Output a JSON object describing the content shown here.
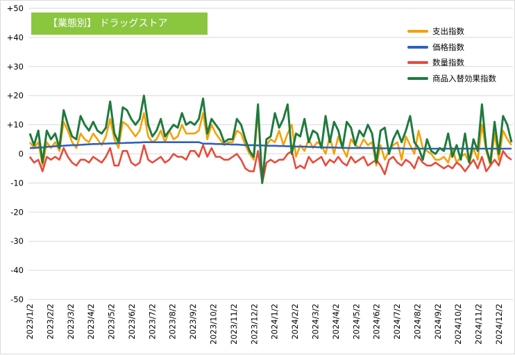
{
  "chart_data": {
    "type": "line",
    "title": "【業態別】 ドラッグストア",
    "ylim": [
      -50,
      50
    ],
    "ytick_labels": [
      "+50",
      "+40",
      "+30",
      "+20",
      "+10",
      "0",
      "-10",
      "-20",
      "-30",
      "-40",
      "-50"
    ],
    "ytick_values": [
      50,
      40,
      30,
      20,
      10,
      0,
      -10,
      -20,
      -30,
      -40,
      -50
    ],
    "xtick_labels": [
      "2023/1/2",
      "2023/2/2",
      "2023/3/2",
      "2023/4/2",
      "2023/5/2",
      "2023/6/2",
      "2023/7/2",
      "2023/8/2",
      "2023/9/2",
      "2023/10/2",
      "2023/11/2",
      "2023/12/2",
      "2024/1/2",
      "2024/2/2",
      "2024/3/2",
      "2024/4/2",
      "2024/5/2",
      "2024/6/2",
      "2024/7/2",
      "2024/8/2",
      "2024/9/2",
      "2024/10/2",
      "2024/11/2",
      "2024/12/2"
    ],
    "grid": true,
    "legend_position": "top-right",
    "series": [
      {
        "name": "支出指数",
        "color": "#f5a100",
        "values": [
          4,
          2,
          4,
          -4,
          4,
          2,
          4,
          1,
          11,
          8,
          4,
          2,
          7,
          5,
          4,
          7,
          5,
          3,
          6,
          12,
          5,
          2,
          11,
          10,
          8,
          6,
          8,
          14,
          6,
          4,
          5,
          8,
          4,
          8,
          5,
          6,
          10,
          7,
          7,
          7,
          8,
          14,
          5,
          10,
          7,
          5,
          3,
          4,
          4,
          8,
          7,
          3,
          0,
          -2,
          14,
          -8,
          3,
          5,
          4,
          8,
          3,
          7,
          10,
          -1,
          3,
          1,
          5,
          2,
          4,
          3,
          0,
          6,
          0,
          6,
          2,
          -1,
          5,
          3,
          2,
          5,
          3,
          4,
          -4,
          3,
          -2,
          1,
          3,
          4,
          -2,
          6,
          3,
          0,
          8,
          2,
          1,
          0,
          -2,
          -2,
          -1,
          -3,
          2,
          -3,
          -1,
          0,
          -3,
          2,
          -2,
          10,
          1,
          -4,
          7,
          -2,
          8,
          5,
          3
        ]
      },
      {
        "name": "価格指数",
        "color": "#2f5fbf",
        "values": [
          2,
          2,
          2.2,
          2.2,
          2.4,
          2.5,
          2.6,
          2.7,
          2.8,
          2.9,
          3,
          3,
          3.1,
          3.2,
          3.3,
          3.4,
          3.4,
          3.5,
          3.5,
          3.6,
          3.6,
          3.7,
          3.7,
          3.8,
          3.8,
          3.9,
          3.9,
          4,
          4,
          4,
          4,
          4,
          4,
          4,
          4,
          4,
          4,
          4,
          4,
          4,
          4,
          3.5,
          3.5,
          3.5,
          3.4,
          3.4,
          3.3,
          3.3,
          3.2,
          3.2,
          3.1,
          3,
          3,
          3,
          2.9,
          2.9,
          2.8,
          2.8,
          2.8,
          2.7,
          2.7,
          2.6,
          2.6,
          2.5,
          2.5,
          2.5,
          2.4,
          2.4,
          2.3,
          2.3,
          2.2,
          2.2,
          2.2,
          2.1,
          2.1,
          2,
          2,
          2,
          2,
          2,
          2,
          2,
          2,
          1.9,
          1.9,
          1.9,
          1.9,
          1.9,
          1.9,
          1.8,
          1.8,
          1.8,
          1.8,
          1.8,
          1.8,
          1.8,
          1.8,
          1.8,
          1.8,
          1.8,
          1.8,
          1.8,
          1.8,
          1.8,
          1.8,
          1.8,
          1.8,
          1.8,
          1.8,
          1.8,
          1.8,
          1.8,
          1.8,
          1.8,
          1.8
        ]
      },
      {
        "name": "数量指数",
        "color": "#e84a3a",
        "values": [
          -1,
          -3,
          -2,
          -6,
          -1,
          -2,
          -1,
          -2,
          2,
          -1,
          -3,
          -4,
          -2,
          -2,
          -3,
          -1,
          -2,
          -3,
          -1,
          2,
          -4,
          -4,
          1,
          1,
          -3,
          -4,
          -3,
          3,
          -2,
          -3,
          -2,
          -1,
          -3,
          -2,
          0,
          -1,
          -1,
          -2,
          1,
          1,
          -1,
          3,
          -1,
          2,
          -1,
          -1,
          -2,
          -2,
          -1,
          0,
          -2,
          -5,
          -6,
          -6,
          1,
          -10,
          -3,
          -2,
          -3,
          -2,
          -2,
          0,
          1,
          -5,
          -4,
          -5,
          -1,
          -3,
          -2,
          -1,
          -4,
          -2,
          -3,
          -1,
          -3,
          -4,
          -1,
          -3,
          -2,
          -1,
          -4,
          -3,
          -2,
          -4,
          -7,
          -2,
          -1,
          -3,
          -4,
          -2,
          -3,
          -5,
          -1,
          -3,
          -4,
          -4,
          -3,
          -4,
          -5,
          -4,
          -5,
          -3,
          -4,
          -6,
          -4,
          -2,
          -5,
          -1,
          -6,
          -4,
          -2,
          -4,
          1,
          -1,
          -2
        ]
      },
      {
        "name": "商品入替効果指数",
        "color": "#1f7a3d",
        "values": [
          7,
          3,
          8,
          -3,
          8,
          5,
          7,
          2,
          15,
          10,
          6,
          5,
          13,
          10,
          8,
          11,
          8,
          7,
          9,
          18,
          7,
          4,
          16,
          15,
          12,
          10,
          12,
          20,
          10,
          6,
          8,
          12,
          6,
          8,
          10,
          9,
          14,
          10,
          11,
          10,
          12,
          19,
          7,
          12,
          10,
          8,
          4,
          5,
          5,
          12,
          10,
          5,
          1,
          -1,
          17,
          -10,
          5,
          6,
          14,
          9,
          12,
          17,
          0,
          7,
          6,
          12,
          4,
          8,
          7,
          2,
          13,
          4,
          11,
          8,
          2,
          11,
          9,
          3,
          8,
          6,
          10,
          7,
          -3,
          8,
          9,
          0,
          5,
          8,
          4,
          8,
          13,
          4,
          2,
          -2,
          5,
          1,
          0,
          2,
          1,
          7,
          -1,
          3,
          -2,
          7,
          -3,
          5,
          1,
          17,
          2,
          -3,
          11,
          0,
          13,
          10,
          4
        ]
      }
    ]
  }
}
